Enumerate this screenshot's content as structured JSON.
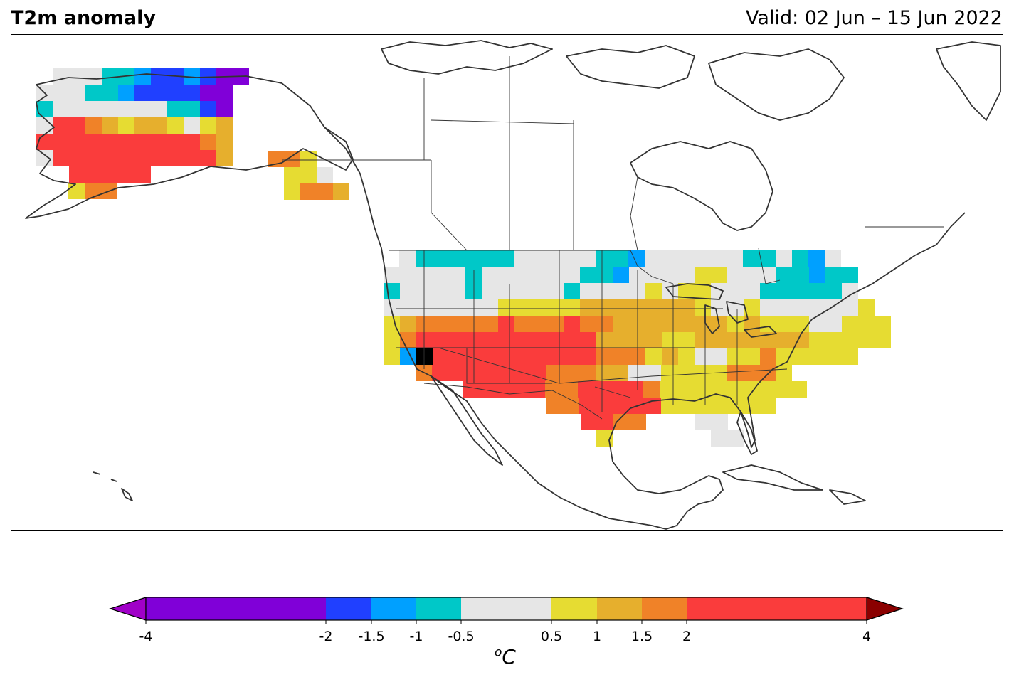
{
  "header": {
    "title": "T2m anomaly",
    "valid": "Valid: 02 Jun – 15 Jun 2022"
  },
  "colorbar": {
    "unit_symbol": "C",
    "unit_prefix": "o",
    "ticks": [
      "-4",
      "-2",
      "-1.5",
      "-1",
      "-0.5",
      "0.5",
      "1",
      "1.5",
      "2",
      "4"
    ],
    "bins": [
      {
        "from": -4,
        "to": -2,
        "color": "#8000d8"
      },
      {
        "from": -2,
        "to": -1.5,
        "color": "#2040ff"
      },
      {
        "from": -1.5,
        "to": -1,
        "color": "#00a0ff"
      },
      {
        "from": -1,
        "to": -0.5,
        "color": "#00c8c8"
      },
      {
        "from": -0.5,
        "to": 0.5,
        "color": "#e6e6e6"
      },
      {
        "from": 0.5,
        "to": 1,
        "color": "#e6dc32"
      },
      {
        "from": 1,
        "to": 1.5,
        "color": "#e6af2d"
      },
      {
        "from": 1.5,
        "to": 2,
        "color": "#f08228"
      },
      {
        "from": 2,
        "to": 4,
        "color": "#fa3c3c"
      }
    ],
    "under_color": "#a000c8",
    "over_color": "#8b0000"
  }
}
